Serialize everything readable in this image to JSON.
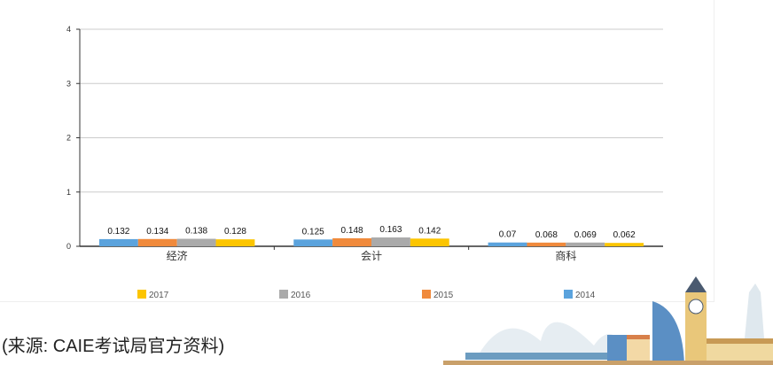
{
  "chart_data": {
    "type": "bar",
    "categories": [
      "经济",
      "会计",
      "商科"
    ],
    "series": [
      {
        "name": "2014",
        "color": "#5ba3dd",
        "values": [
          0.132,
          0.125,
          0.07
        ]
      },
      {
        "name": "2015",
        "color": "#f08a3c",
        "values": [
          0.134,
          0.148,
          0.068
        ]
      },
      {
        "name": "2016",
        "color": "#aaaaaa",
        "values": [
          0.138,
          0.163,
          0.069
        ]
      },
      {
        "name": "2017",
        "color": "#fcc500",
        "values": [
          0.128,
          0.142,
          0.062
        ]
      }
    ],
    "value_labels": [
      [
        "0.132",
        "0.125",
        "0.07"
      ],
      [
        "0.134",
        "0.148",
        "0.068"
      ],
      [
        "0.138",
        "0.163",
        "0.069"
      ],
      [
        "0.128",
        "0.142",
        "0.062"
      ]
    ],
    "legend_order": [
      "2017",
      "2016",
      "2015",
      "2014"
    ],
    "legend_placement": "bottom",
    "yticks": [
      "0",
      "1",
      "2",
      "3",
      "4"
    ],
    "ylim": [
      0,
      4
    ],
    "grid": true
  },
  "source_note": "(来源: CAIE考试局官方资料)"
}
